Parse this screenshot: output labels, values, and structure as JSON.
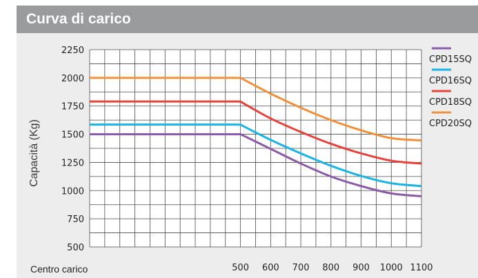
{
  "header": {
    "title": "Curva di carico"
  },
  "chart_data": {
    "type": "line",
    "title": "Curva di carico",
    "ylabel": "Capacità (Kg)",
    "xlabel": "Centro carico",
    "yticks": [
      500,
      750,
      1000,
      1250,
      1500,
      1750,
      2000,
      2250
    ],
    "ylim": [
      500,
      2250
    ],
    "xticks": [
      500,
      600,
      700,
      800,
      900,
      1000,
      1100
    ],
    "xlim": [
      0,
      1100
    ],
    "grid": true,
    "legend_position": "right",
    "series": [
      {
        "name": "CPD15SQ",
        "color": "#8a5aa6",
        "points": [
          [
            0,
            1500
          ],
          [
            500,
            1500
          ],
          [
            600,
            1370
          ],
          [
            700,
            1240
          ],
          [
            800,
            1125
          ],
          [
            900,
            1040
          ],
          [
            1000,
            975
          ],
          [
            1100,
            950
          ]
        ]
      },
      {
        "name": "CPD16SQ",
        "color": "#19b4e6",
        "points": [
          [
            0,
            1585
          ],
          [
            500,
            1585
          ],
          [
            600,
            1450
          ],
          [
            700,
            1330
          ],
          [
            800,
            1220
          ],
          [
            900,
            1130
          ],
          [
            1000,
            1065
          ],
          [
            1100,
            1040
          ]
        ]
      },
      {
        "name": "CPD18SQ",
        "color": "#e8423c",
        "points": [
          [
            0,
            1790
          ],
          [
            500,
            1790
          ],
          [
            600,
            1640
          ],
          [
            700,
            1520
          ],
          [
            800,
            1415
          ],
          [
            900,
            1330
          ],
          [
            1000,
            1265
          ],
          [
            1100,
            1240
          ]
        ]
      },
      {
        "name": "CPD20SQ",
        "color": "#f0913a",
        "points": [
          [
            0,
            2000
          ],
          [
            500,
            2000
          ],
          [
            600,
            1860
          ],
          [
            700,
            1735
          ],
          [
            800,
            1625
          ],
          [
            900,
            1535
          ],
          [
            1000,
            1465
          ],
          [
            1100,
            1445
          ]
        ]
      }
    ]
  }
}
